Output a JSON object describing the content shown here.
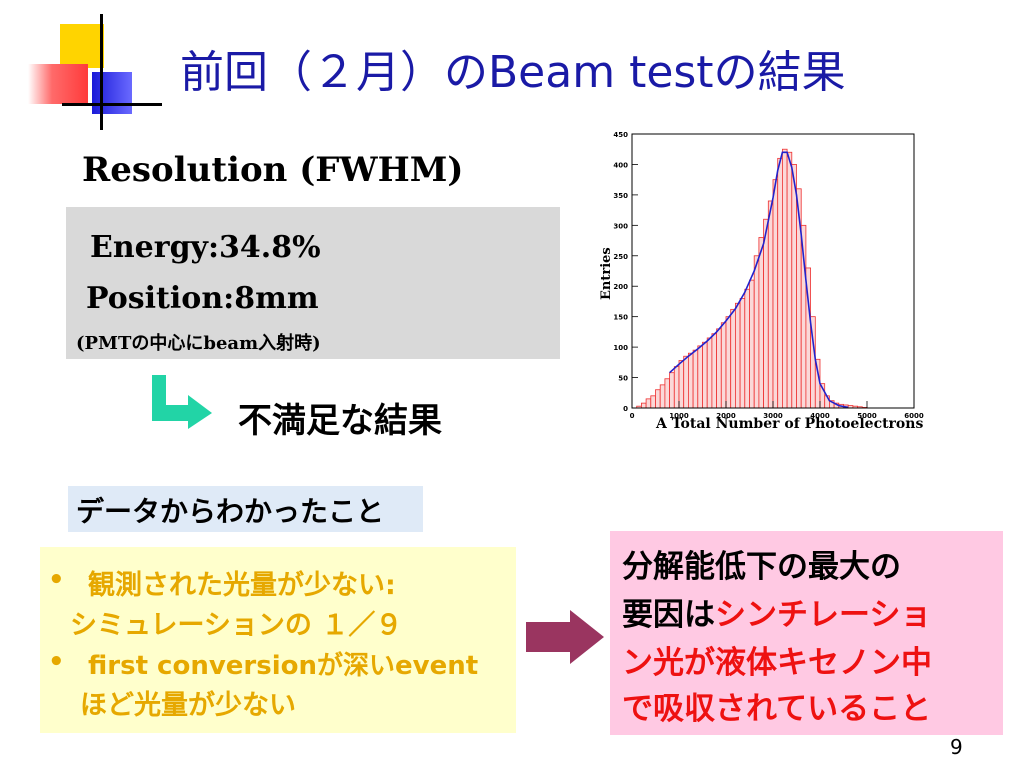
{
  "slide": {
    "title": "前回（２月）のBeam testの結果",
    "page_number": "9",
    "colors": {
      "title": "#1a1aa6",
      "bullet_text": "#e6a800",
      "highlight_red": "#ee1111",
      "arrow_green": "#22d4a6",
      "arrow_maroon": "#9a3560"
    }
  },
  "resolution": {
    "heading": "Resolution (FWHM)",
    "energy": "Energy:34.8%",
    "position": "Position:8mm",
    "note": "(PMTの中心にbeam入射時)"
  },
  "verdict": "不満足な結果",
  "findings": {
    "label": "データからわかったこと",
    "bullets": [
      {
        "line1": "観測された光量が少ない:",
        "line2": "シミュレーションの １／９"
      },
      {
        "line1": "first conversionが深いevent",
        "line2": "ほど光量が少ない"
      }
    ]
  },
  "conclusion": {
    "line1": "分解能低下の最大の",
    "line2_black": "要因は",
    "line2_red": "シンチレーショ",
    "line3_red": "ン光が液体キセノン中",
    "line4_red": "で吸収されていること"
  },
  "chart_data": {
    "type": "histogram",
    "xlabel": "A Total Number of Photoelectrons",
    "ylabel": "Entries",
    "xlim": [
      0,
      6000
    ],
    "ylim": [
      0,
      450
    ],
    "xticks": [
      0,
      1000,
      2000,
      3000,
      4000,
      5000,
      6000
    ],
    "yticks": [
      0,
      50,
      100,
      150,
      200,
      250,
      300,
      350,
      400,
      450
    ],
    "bin_width": 100,
    "bin_starts": [
      0,
      100,
      200,
      300,
      400,
      500,
      600,
      700,
      800,
      900,
      1000,
      1100,
      1200,
      1300,
      1400,
      1500,
      1600,
      1700,
      1800,
      1900,
      2000,
      2100,
      2200,
      2300,
      2400,
      2500,
      2600,
      2700,
      2800,
      2900,
      3000,
      3100,
      3200,
      3300,
      3400,
      3500,
      3600,
      3700,
      3800,
      3900,
      4000,
      4100,
      4200,
      4300,
      4400,
      4500,
      4600,
      4700,
      4800,
      4900,
      5000
    ],
    "counts": [
      0,
      3,
      8,
      15,
      20,
      30,
      38,
      48,
      58,
      68,
      78,
      85,
      90,
      95,
      102,
      108,
      115,
      122,
      130,
      140,
      150,
      162,
      172,
      180,
      195,
      210,
      250,
      280,
      310,
      340,
      375,
      410,
      425,
      420,
      400,
      360,
      300,
      230,
      150,
      80,
      40,
      20,
      12,
      8,
      6,
      5,
      4,
      3,
      2,
      1,
      0
    ],
    "fit_x": [
      800,
      1000,
      1200,
      1400,
      1600,
      1800,
      2000,
      2200,
      2400,
      2600,
      2800,
      3000,
      3100,
      3200,
      3300,
      3400,
      3500,
      3600,
      3700,
      3800,
      3900,
      4000,
      4200,
      4400,
      4600
    ],
    "fit_y": [
      58,
      72,
      85,
      97,
      110,
      125,
      143,
      163,
      190,
      225,
      270,
      345,
      390,
      420,
      420,
      395,
      350,
      285,
      210,
      140,
      80,
      40,
      12,
      4,
      1
    ],
    "colors": {
      "bars_fill": "#fbd8d8",
      "bars_stroke": "#ee3030",
      "fit": "#2222cc"
    }
  }
}
